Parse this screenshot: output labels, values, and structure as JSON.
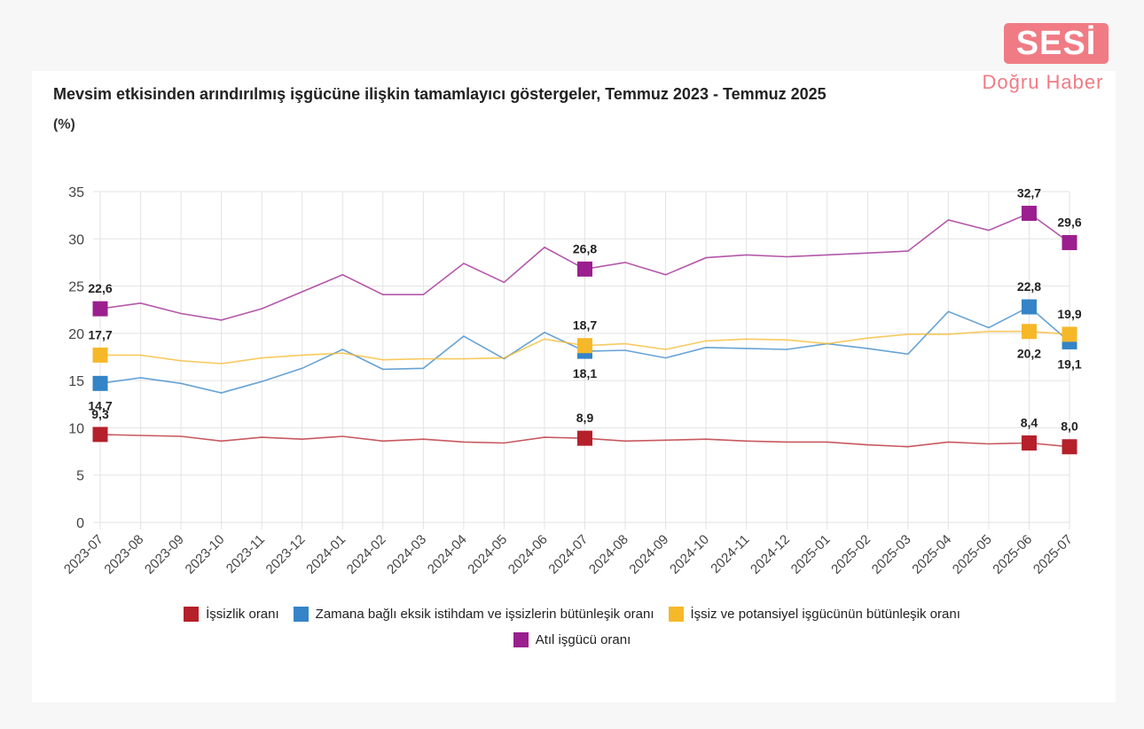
{
  "logo": {
    "brand": "SESİ",
    "tagline": "Doğru Haber"
  },
  "chart_data": {
    "type": "line",
    "title": "Mevsim etkisinden arındırılmış işgücüne ilişkin tamamlayıcı göstergeler, Temmuz 2023 - Temmuz 2025",
    "unit_label": "(%)",
    "ylim": [
      0,
      35
    ],
    "yticks": [
      "0",
      "5",
      "10",
      "15",
      "20",
      "25",
      "30",
      "35"
    ],
    "grid": true,
    "legend_position": "bottom",
    "categories": [
      "2023-07",
      "2023-08",
      "2023-09",
      "2023-10",
      "2023-11",
      "2023-12",
      "2024-01",
      "2024-02",
      "2024-03",
      "2024-04",
      "2024-05",
      "2024-06",
      "2024-07",
      "2024-08",
      "2024-09",
      "2024-10",
      "2024-11",
      "2024-12",
      "2025-01",
      "2025-02",
      "2025-03",
      "2025-04",
      "2025-05",
      "2025-06",
      "2025-07"
    ],
    "series": [
      {
        "name": "İşsizlik oranı",
        "color": "#b5202a",
        "values": [
          9.3,
          9.2,
          9.1,
          8.6,
          9.0,
          8.8,
          9.1,
          8.6,
          8.8,
          8.5,
          8.4,
          9.0,
          8.9,
          8.6,
          8.7,
          8.8,
          8.6,
          8.5,
          8.5,
          8.2,
          8.0,
          8.5,
          8.3,
          8.4,
          8.0
        ],
        "labels": [
          {
            "i": 0,
            "text": "9,3",
            "pos": "above"
          },
          {
            "i": 12,
            "text": "8,9",
            "pos": "above"
          },
          {
            "i": 23,
            "text": "8,4",
            "pos": "above"
          },
          {
            "i": 24,
            "text": "8,0",
            "pos": "above"
          }
        ]
      },
      {
        "name": "Zamana bağlı eksik istihdam ve işsizlerin bütünleşik oranı",
        "color": "#3484c7",
        "values": [
          14.7,
          15.3,
          14.7,
          13.7,
          14.9,
          16.3,
          18.3,
          16.2,
          16.3,
          19.7,
          17.3,
          20.1,
          18.1,
          18.2,
          17.4,
          18.5,
          18.4,
          18.3,
          18.9,
          18.4,
          17.8,
          22.3,
          20.6,
          22.8,
          19.1
        ],
        "labels": [
          {
            "i": 0,
            "text": "14,7",
            "pos": "below"
          },
          {
            "i": 12,
            "text": "18,1",
            "pos": "below"
          },
          {
            "i": 23,
            "text": "22,8",
            "pos": "above"
          },
          {
            "i": 24,
            "text": "19,1",
            "pos": "below"
          }
        ]
      },
      {
        "name": "İşsiz ve potansiyel işgücünün bütünleşik oranı",
        "color": "#f6b829",
        "values": [
          17.7,
          17.7,
          17.1,
          16.8,
          17.4,
          17.7,
          17.9,
          17.2,
          17.3,
          17.3,
          17.4,
          19.4,
          18.7,
          18.9,
          18.3,
          19.2,
          19.4,
          19.3,
          18.9,
          19.5,
          19.9,
          19.9,
          20.2,
          20.2,
          19.9
        ],
        "labels": [
          {
            "i": 0,
            "text": "17,7",
            "pos": "above"
          },
          {
            "i": 12,
            "text": "18,7",
            "pos": "above"
          },
          {
            "i": 23,
            "text": "20,2",
            "pos": "below"
          },
          {
            "i": 24,
            "text": "19,9",
            "pos": "above"
          }
        ]
      },
      {
        "name": "Atıl işgücü oranı",
        "color": "#9b1f8e",
        "values": [
          22.6,
          23.2,
          22.1,
          21.4,
          22.6,
          24.4,
          26.2,
          24.1,
          24.1,
          27.4,
          25.4,
          29.1,
          26.8,
          27.5,
          26.2,
          28.0,
          28.3,
          28.1,
          28.3,
          28.5,
          28.7,
          32.0,
          30.9,
          32.7,
          29.6
        ],
        "labels": [
          {
            "i": 0,
            "text": "22,6",
            "pos": "above"
          },
          {
            "i": 12,
            "text": "26,8",
            "pos": "above"
          },
          {
            "i": 23,
            "text": "32,7",
            "pos": "above"
          },
          {
            "i": 24,
            "text": "29,6",
            "pos": "above"
          }
        ]
      }
    ]
  }
}
